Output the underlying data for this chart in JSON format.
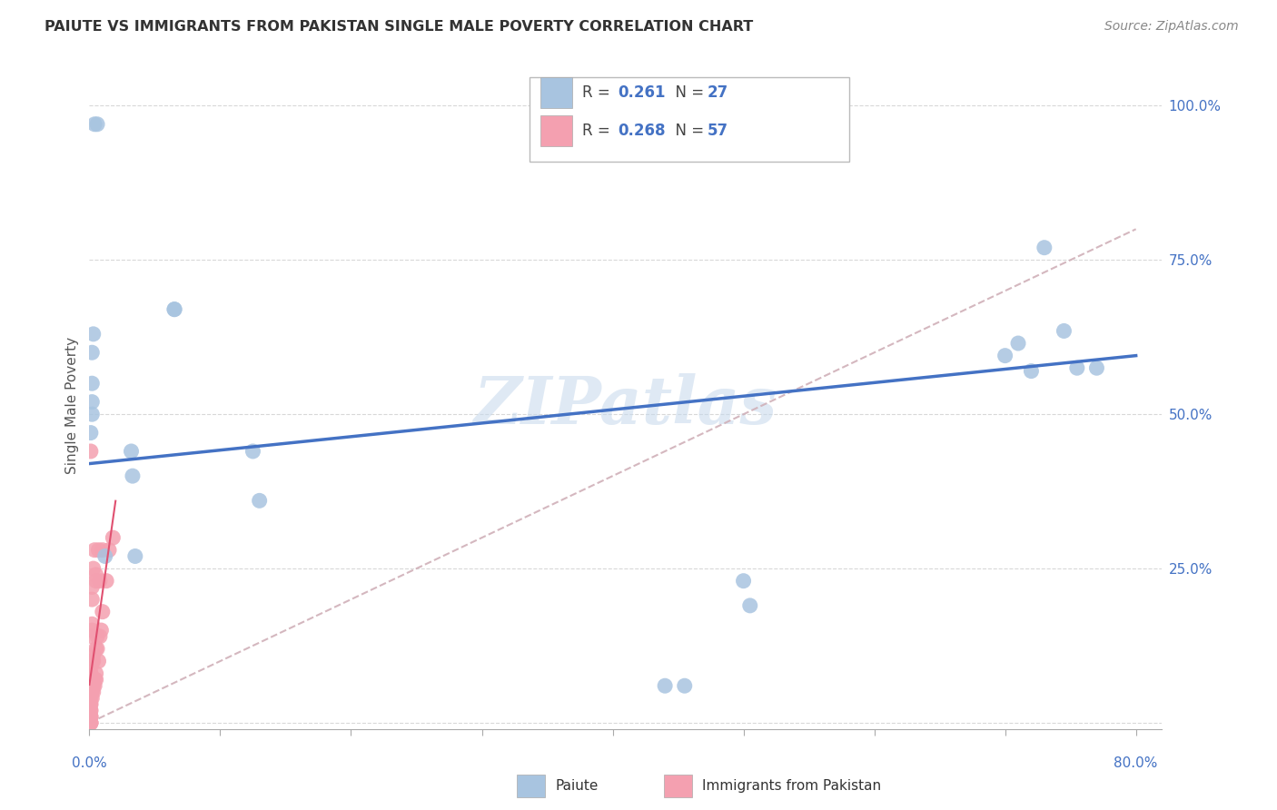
{
  "title": "PAIUTE VS IMMIGRANTS FROM PAKISTAN SINGLE MALE POVERTY CORRELATION CHART",
  "source": "Source: ZipAtlas.com",
  "ylabel": "Single Male Poverty",
  "legend1_R": "0.261",
  "legend1_N": "27",
  "legend2_R": "0.268",
  "legend2_N": "57",
  "paiute_color": "#a8c4e0",
  "pakistan_color": "#f4a0b0",
  "line1_color": "#4472c4",
  "line2_color": "#e899a8",
  "diagonal_color": "#d0b0b8",
  "watermark": "ZIPatlas",
  "paiute_x": [
    0.004,
    0.006,
    0.002,
    0.002,
    0.002,
    0.002,
    0.001,
    0.003,
    0.032,
    0.033,
    0.035,
    0.065,
    0.065,
    0.125,
    0.13,
    0.5,
    0.505,
    0.7,
    0.71,
    0.72,
    0.73,
    0.745,
    0.755,
    0.77,
    0.44,
    0.455,
    0.012
  ],
  "paiute_y": [
    0.97,
    0.97,
    0.6,
    0.55,
    0.52,
    0.5,
    0.47,
    0.63,
    0.44,
    0.4,
    0.27,
    0.67,
    0.67,
    0.44,
    0.36,
    0.23,
    0.19,
    0.595,
    0.615,
    0.57,
    0.77,
    0.635,
    0.575,
    0.575,
    0.06,
    0.06,
    0.27
  ],
  "pakistan_x": [
    0.001,
    0.001,
    0.001,
    0.001,
    0.001,
    0.001,
    0.001,
    0.001,
    0.001,
    0.001,
    0.001,
    0.001,
    0.001,
    0.001,
    0.001,
    0.001,
    0.001,
    0.001,
    0.001,
    0.001,
    0.001,
    0.001,
    0.001,
    0.002,
    0.002,
    0.002,
    0.002,
    0.002,
    0.002,
    0.002,
    0.002,
    0.003,
    0.003,
    0.003,
    0.003,
    0.003,
    0.004,
    0.004,
    0.004,
    0.005,
    0.005,
    0.005,
    0.005,
    0.005,
    0.006,
    0.006,
    0.007,
    0.007,
    0.008,
    0.008,
    0.009,
    0.01,
    0.01,
    0.013,
    0.015,
    0.018,
    0.001
  ],
  "pakistan_y": [
    0.0,
    0.0,
    0.0,
    0.0,
    0.01,
    0.01,
    0.01,
    0.02,
    0.02,
    0.03,
    0.03,
    0.04,
    0.05,
    0.05,
    0.06,
    0.07,
    0.07,
    0.07,
    0.08,
    0.08,
    0.09,
    0.1,
    0.1,
    0.04,
    0.05,
    0.1,
    0.14,
    0.15,
    0.16,
    0.2,
    0.22,
    0.05,
    0.06,
    0.1,
    0.11,
    0.25,
    0.06,
    0.07,
    0.28,
    0.07,
    0.08,
    0.12,
    0.23,
    0.24,
    0.12,
    0.14,
    0.1,
    0.28,
    0.14,
    0.23,
    0.15,
    0.18,
    0.28,
    0.23,
    0.28,
    0.3,
    0.44
  ],
  "line1_x0": 0.0,
  "line1_y0": 0.42,
  "line1_x1": 0.8,
  "line1_y1": 0.595,
  "line2_x0": 0.0,
  "line2_y0": 0.0,
  "line2_x1": 0.8,
  "line2_y1": 0.8,
  "xlim": [
    0.0,
    0.82
  ],
  "ylim": [
    -0.01,
    1.04
  ],
  "xmin": 0.0,
  "xmax": 0.8
}
